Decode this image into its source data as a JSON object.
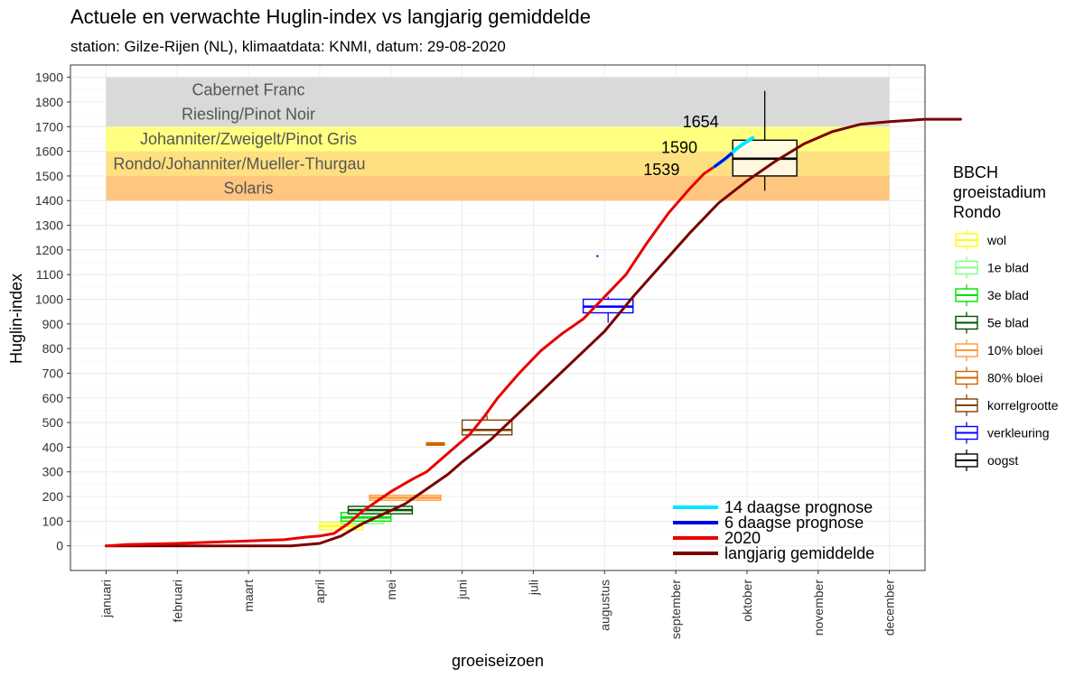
{
  "chart_data": {
    "type": "line",
    "title": "Actuele en verwachte Huglin-index vs langjarig gemiddelde",
    "subtitle": "station: Gilze-Rijen (NL), klimaatdata: KNMI, datum: 29-08-2020",
    "xlabel": "groeiseizoen",
    "ylabel": "Huglin-index",
    "ylim": [
      -100,
      1950
    ],
    "yticks": [
      0,
      100,
      200,
      300,
      400,
      500,
      600,
      700,
      800,
      900,
      1000,
      1100,
      1200,
      1300,
      1400,
      1500,
      1600,
      1700,
      1800,
      1900
    ],
    "xlim": [
      -0.5,
      11.5
    ],
    "months": [
      "januari",
      "februari",
      "maart",
      "april",
      "mei",
      "juni",
      "juli",
      "augustus",
      "september",
      "oktober",
      "november",
      "december"
    ],
    "grid": true,
    "bands": [
      {
        "label": "Cabernet Franc",
        "ymin": 1800,
        "ymax": 1900,
        "color": "#d9d9d9"
      },
      {
        "label": "Riesling/Pinot Noir",
        "ymin": 1700,
        "ymax": 1800,
        "color": "#d9d9d9"
      },
      {
        "label": "Johanniter/Zweigelt/Pinot Gris",
        "ymin": 1600,
        "ymax": 1700,
        "color": "#ffff80"
      },
      {
        "label": "Rondo/Johanniter/Mueller-Thurgau",
        "ymin": 1500,
        "ymax": 1600,
        "color": "#ffe080"
      },
      {
        "label": "Solaris",
        "ymin": 1400,
        "ymax": 1500,
        "color": "#ffc680"
      }
    ],
    "series": [
      {
        "name": "langjarig gemiddelde",
        "color": "#7a0000",
        "points": [
          [
            0,
            0
          ],
          [
            1,
            0
          ],
          [
            2,
            0
          ],
          [
            2.6,
            0
          ],
          [
            3.0,
            10
          ],
          [
            3.3,
            40
          ],
          [
            3.6,
            90
          ],
          [
            3.9,
            130
          ],
          [
            4.2,
            170
          ],
          [
            4.5,
            230
          ],
          [
            4.8,
            290
          ],
          [
            5.0,
            340
          ],
          [
            5.4,
            430
          ],
          [
            5.8,
            540
          ],
          [
            6.2,
            650
          ],
          [
            6.6,
            760
          ],
          [
            7.0,
            870
          ],
          [
            7.4,
            1010
          ],
          [
            7.8,
            1140
          ],
          [
            8.2,
            1270
          ],
          [
            8.6,
            1390
          ],
          [
            9.0,
            1480
          ],
          [
            9.4,
            1560
          ],
          [
            9.8,
            1630
          ],
          [
            10.2,
            1680
          ],
          [
            10.6,
            1710
          ],
          [
            11.0,
            1720
          ],
          [
            11.5,
            1730
          ],
          [
            12.0,
            1730
          ]
        ]
      },
      {
        "name": "2020",
        "color": "#e80000",
        "points": [
          [
            0,
            0
          ],
          [
            0.3,
            5
          ],
          [
            1.0,
            10
          ],
          [
            1.5,
            15
          ],
          [
            2.0,
            20
          ],
          [
            2.5,
            25
          ],
          [
            2.8,
            35
          ],
          [
            3.0,
            40
          ],
          [
            3.2,
            50
          ],
          [
            3.4,
            90
          ],
          [
            3.6,
            140
          ],
          [
            3.8,
            180
          ],
          [
            4.0,
            220
          ],
          [
            4.3,
            270
          ],
          [
            4.5,
            300
          ],
          [
            4.7,
            350
          ],
          [
            4.9,
            400
          ],
          [
            5.1,
            450
          ],
          [
            5.3,
            520
          ],
          [
            5.5,
            600
          ],
          [
            5.8,
            700
          ],
          [
            6.1,
            790
          ],
          [
            6.4,
            860
          ],
          [
            6.7,
            920
          ],
          [
            7.0,
            1010
          ],
          [
            7.3,
            1100
          ],
          [
            7.6,
            1230
          ],
          [
            7.9,
            1350
          ],
          [
            8.2,
            1450
          ],
          [
            8.4,
            1510
          ],
          [
            8.55,
            1539
          ]
        ]
      },
      {
        "name": "14 daagse prognose",
        "color": "#00e5ff",
        "points": [
          [
            8.55,
            1539
          ],
          [
            8.7,
            1570
          ],
          [
            8.85,
            1610
          ],
          [
            9.0,
            1640
          ],
          [
            9.08,
            1654
          ]
        ]
      },
      {
        "name": "6 daagse prognose",
        "color": "#0000e0",
        "points": [
          [
            8.55,
            1539
          ],
          [
            8.65,
            1560
          ],
          [
            8.78,
            1590
          ]
        ]
      }
    ],
    "annotations": [
      {
        "text": "1654",
        "x": 8.35,
        "y": 1720
      },
      {
        "text": "1590",
        "x": 8.05,
        "y": 1615
      },
      {
        "text": "1539",
        "x": 7.8,
        "y": 1525
      }
    ],
    "boxes": [
      {
        "name": "wol",
        "color": "#ffff00",
        "x1": 3.0,
        "x2": 3.6,
        "q1": 65,
        "median": 80,
        "q3": 95,
        "wlo": 65,
        "whi": 95
      },
      {
        "name": "1e blad",
        "color": "#80ff80",
        "x1": 3.3,
        "x2": 3.9,
        "q1": 90,
        "median": 105,
        "q3": 125,
        "wlo": 90,
        "whi": 125
      },
      {
        "name": "3e blad",
        "color": "#00e000",
        "x1": 3.3,
        "x2": 4.0,
        "q1": 100,
        "median": 115,
        "q3": 135,
        "wlo": 100,
        "whi": 135
      },
      {
        "name": "5e blad",
        "color": "#005000",
        "x1": 3.4,
        "x2": 4.3,
        "q1": 130,
        "median": 145,
        "q3": 160,
        "wlo": 130,
        "whi": 160
      },
      {
        "name": "10% bloei",
        "color": "#ff9933",
        "x1": 3.7,
        "x2": 4.7,
        "q1": 185,
        "median": 195,
        "q3": 205,
        "wlo": 185,
        "whi": 205
      },
      {
        "name": "80% bloei",
        "color": "#cc6600",
        "x1": 4.5,
        "x2": 4.75,
        "q1": 408,
        "median": 413,
        "q3": 418,
        "wlo": 408,
        "whi": 418
      },
      {
        "name": "korrelgrootte",
        "color": "#804000",
        "x1": 5.0,
        "x2": 5.7,
        "q1": 450,
        "median": 470,
        "q3": 510,
        "wlo": 450,
        "whi": 530
      },
      {
        "name": "verkleuring",
        "color": "#0000ff",
        "x1": 6.7,
        "x2": 7.4,
        "q1": 945,
        "median": 970,
        "q3": 1000,
        "wlo": 905,
        "whi": 1010,
        "outlier": 1175,
        "outlier_x": 6.9
      },
      {
        "name": "oogst",
        "color": "#000000",
        "x1": 8.8,
        "x2": 9.7,
        "q1": 1500,
        "median": 1570,
        "q3": 1645,
        "wlo": 1440,
        "whi": 1845
      }
    ],
    "legend": {
      "title": [
        "BBCH",
        "groeistadium",
        "Rondo"
      ],
      "placement": "right",
      "items": [
        {
          "label": "wol",
          "color": "#ffff00"
        },
        {
          "label": "1e blad",
          "color": "#80ff80"
        },
        {
          "label": "3e blad",
          "color": "#00e000"
        },
        {
          "label": "5e blad",
          "color": "#005000"
        },
        {
          "label": "10% bloei",
          "color": "#ff9933"
        },
        {
          "label": "80% bloei",
          "color": "#cc6600"
        },
        {
          "label": "korrelgrootte",
          "color": "#804000"
        },
        {
          "label": "verkleuring",
          "color": "#0000ff"
        },
        {
          "label": "oogst",
          "color": "#000000"
        }
      ]
    },
    "line_legend": {
      "placement": "bottom-right inside plot",
      "items": [
        {
          "label": "14 daagse prognose",
          "color": "#00e5ff"
        },
        {
          "label": "6 daagse prognose",
          "color": "#0000e0"
        },
        {
          "label": "2020",
          "color": "#e80000"
        },
        {
          "label": "langjarig gemiddelde",
          "color": "#7a0000"
        }
      ]
    }
  }
}
